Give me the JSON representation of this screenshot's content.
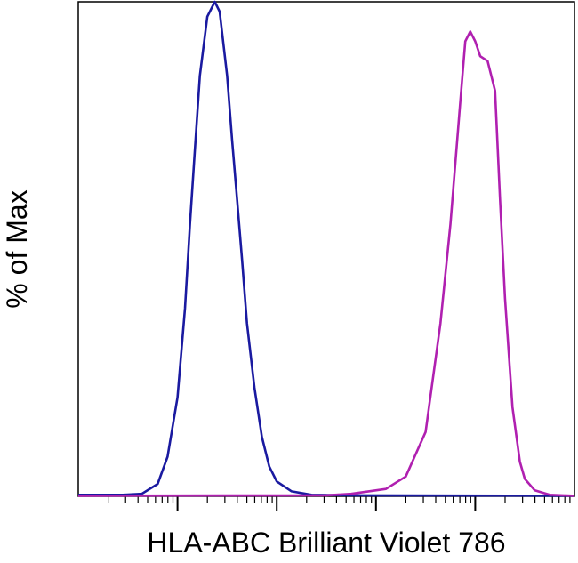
{
  "chart_data": {
    "type": "line",
    "title": "",
    "xlabel": "HLA-ABC Brilliant Violet 786",
    "ylabel": "% of Max",
    "x_scale": "log",
    "x_decades": 5,
    "xlim": [
      0,
      1
    ],
    "ylim": [
      0,
      100
    ],
    "grid": false,
    "legend": "none",
    "series": [
      {
        "color": "#1a1aa0",
        "x": [
          0.0,
          0.09,
          0.128,
          0.16,
          0.18,
          0.2,
          0.215,
          0.225,
          0.235,
          0.245,
          0.26,
          0.275,
          0.285,
          0.3,
          0.31,
          0.32,
          0.33,
          0.34,
          0.355,
          0.37,
          0.385,
          0.4,
          0.43,
          0.47,
          0.55,
          1.0
        ],
        "y": [
          0.3,
          0.3,
          0.5,
          2.5,
          8,
          20,
          38,
          55,
          70,
          85,
          97,
          100,
          98,
          85,
          72,
          60,
          48,
          35,
          22,
          12,
          6,
          3,
          1,
          0.3,
          0.2,
          0.1
        ]
      },
      {
        "color": "#b020b0",
        "x": [
          0.0,
          0.5,
          0.55,
          0.62,
          0.66,
          0.7,
          0.73,
          0.75,
          0.77,
          0.78,
          0.79,
          0.8,
          0.81,
          0.825,
          0.84,
          0.85,
          0.86,
          0.875,
          0.89,
          0.9,
          0.92,
          0.95,
          1.0
        ],
        "y": [
          0.1,
          0.2,
          0.5,
          1.5,
          4,
          13,
          35,
          55,
          80,
          92,
          94,
          92,
          89,
          88,
          82,
          60,
          40,
          18,
          7,
          3.5,
          1.2,
          0.3,
          0.1
        ]
      }
    ]
  }
}
